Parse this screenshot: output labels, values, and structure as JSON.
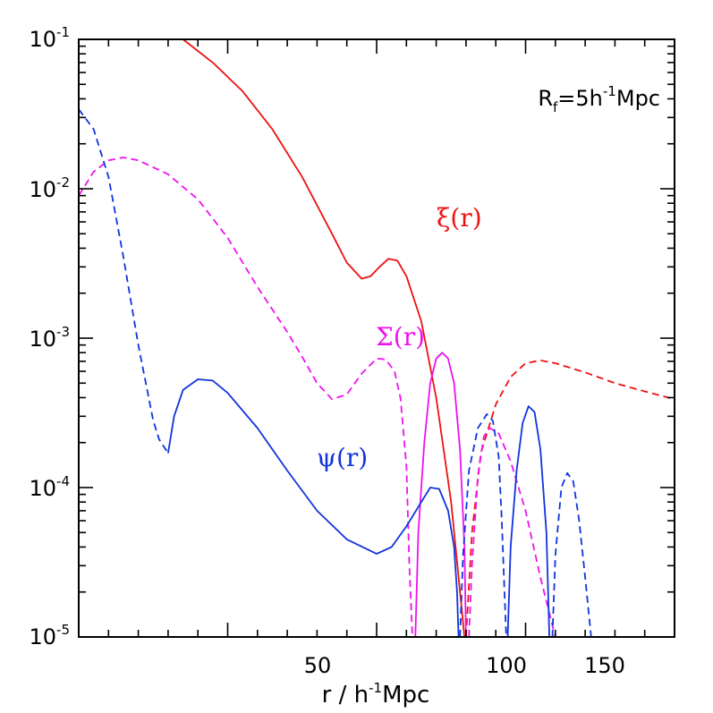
{
  "chart_data": {
    "type": "line",
    "title": "",
    "xlabel": "r / h",
    "xlabel_sup": "-1",
    "xlabel_unit": "Mpc",
    "ylabel": "",
    "xlim": [
      0,
      200
    ],
    "ylim": [
      1e-05,
      0.1
    ],
    "yscale": "log",
    "grid": false,
    "x_ticks": [
      {
        "value": 50,
        "label": "50"
      },
      {
        "value": 100,
        "label": "100"
      },
      {
        "value": 150,
        "label": "150"
      }
    ],
    "y_ticks": [
      {
        "value": 0.1,
        "base": "10",
        "exp": "-1"
      },
      {
        "value": 0.01,
        "base": "10",
        "exp": "-2"
      },
      {
        "value": 0.001,
        "base": "10",
        "exp": "-3"
      },
      {
        "value": 0.0001,
        "base": "10",
        "exp": "-4"
      },
      {
        "value": 1e-05,
        "base": "10",
        "exp": "-5"
      }
    ],
    "annotation": {
      "text_main": "R",
      "text_sub": "f",
      "text_mid": "=5h",
      "text_sup": "-1",
      "text_end": "Mpc"
    },
    "series": [
      {
        "name": "ξ(r)",
        "color": "#ee1111",
        "segments": [
          {
            "style": "solid",
            "points": [
              [
                35,
                0.1
              ],
              [
                45,
                0.07
              ],
              [
                55,
                0.045
              ],
              [
                65,
                0.025
              ],
              [
                75,
                0.012
              ],
              [
                85,
                0.005
              ],
              [
                90,
                0.0032
              ],
              [
                95,
                0.0025
              ],
              [
                98,
                0.0026
              ],
              [
                101,
                0.003
              ],
              [
                104,
                0.0034
              ],
              [
                107,
                0.0033
              ],
              [
                110,
                0.0026
              ],
              [
                115,
                0.0013
              ],
              [
                120,
                0.0004
              ],
              [
                125,
                8e-05
              ],
              [
                129.5,
                1e-05
              ]
            ]
          },
          {
            "style": "dashed",
            "points": [
              [
                130,
                1e-05
              ],
              [
                132,
                5e-05
              ],
              [
                135,
                0.00017
              ],
              [
                140,
                0.00036
              ],
              [
                145,
                0.00055
              ],
              [
                150,
                0.00068
              ],
              [
                155,
                0.00071
              ],
              [
                160,
                0.00068
              ],
              [
                170,
                0.00059
              ],
              [
                180,
                0.0005
              ],
              [
                190,
                0.00044
              ],
              [
                200,
                0.00039
              ]
            ]
          }
        ]
      },
      {
        "name": "Σ(r)",
        "color": "#ee11ee",
        "segments": [
          {
            "style": "dashed",
            "points": [
              [
                0,
                0.009
              ],
              [
                5,
                0.013
              ],
              [
                10,
                0.0155
              ],
              [
                15,
                0.0162
              ],
              [
                20,
                0.0155
              ],
              [
                30,
                0.0125
              ],
              [
                40,
                0.0085
              ],
              [
                50,
                0.0047
              ],
              [
                60,
                0.0022
              ],
              [
                70,
                0.0011
              ],
              [
                75,
                0.00075
              ],
              [
                80,
                0.0005
              ],
              [
                85,
                0.00039
              ],
              [
                90,
                0.00042
              ],
              [
                95,
                0.00058
              ],
              [
                100,
                0.00073
              ],
              [
                103,
                0.00072
              ],
              [
                106,
                0.0006
              ],
              [
                108,
                0.0004
              ],
              [
                110,
                0.00014
              ],
              [
                111,
                3e-05
              ],
              [
                112,
                1e-05
              ]
            ]
          },
          {
            "style": "solid",
            "points": [
              [
                113,
                1e-05
              ],
              [
                114,
                5e-05
              ],
              [
                116,
                0.0002
              ],
              [
                118,
                0.0005
              ],
              [
                120,
                0.00073
              ],
              [
                122,
                0.0008
              ],
              [
                124,
                0.00073
              ],
              [
                126,
                0.0005
              ],
              [
                128,
                0.00018
              ],
              [
                129.5,
                4e-05
              ],
              [
                130,
                1e-05
              ]
            ]
          },
          {
            "style": "dashed",
            "points": [
              [
                131,
                1e-05
              ],
              [
                132,
                3e-05
              ],
              [
                134,
                0.00012
              ],
              [
                136,
                0.00022
              ],
              [
                138,
                0.00025
              ],
              [
                141,
                0.00023
              ],
              [
                145,
                0.00015
              ],
              [
                150,
                7e-05
              ],
              [
                155,
                2.5e-05
              ],
              [
                160,
                1e-05
              ]
            ]
          }
        ]
      },
      {
        "name": "ψ(r)",
        "color": "#1133dd",
        "segments": [
          {
            "style": "dashed",
            "points": [
              [
                0,
                0.034
              ],
              [
                5,
                0.025
              ],
              [
                10,
                0.012
              ],
              [
                15,
                0.0035
              ],
              [
                20,
                0.0009
              ],
              [
                25,
                0.00028
              ],
              [
                27,
                0.00021
              ],
              [
                30,
                0.00017
              ]
            ]
          },
          {
            "style": "solid",
            "points": [
              [
                30,
                0.00017
              ],
              [
                32,
                0.0003
              ],
              [
                35,
                0.00045
              ],
              [
                40,
                0.00053
              ],
              [
                45,
                0.00052
              ],
              [
                50,
                0.00043
              ],
              [
                60,
                0.00025
              ],
              [
                70,
                0.00013
              ],
              [
                80,
                7e-05
              ],
              [
                90,
                4.5e-05
              ],
              [
                100,
                3.6e-05
              ],
              [
                105,
                4e-05
              ],
              [
                110,
                5.5e-05
              ],
              [
                115,
                8e-05
              ],
              [
                118,
                0.0001
              ],
              [
                121,
                9.8e-05
              ],
              [
                124,
                7e-05
              ],
              [
                126,
                4e-05
              ],
              [
                127,
                2e-05
              ],
              [
                127.5,
                1e-05
              ]
            ]
          },
          {
            "style": "dashed",
            "points": [
              [
                128,
                1e-05
              ],
              [
                129,
                3.5e-05
              ],
              [
                131,
                0.00013
              ],
              [
                134,
                0.00025
              ],
              [
                137,
                0.00031
              ],
              [
                139,
                0.00028
              ],
              [
                141,
                0.00016
              ],
              [
                142,
                6e-05
              ],
              [
                143,
                1.8e-05
              ],
              [
                143.5,
                1e-05
              ]
            ]
          },
          {
            "style": "solid",
            "points": [
              [
                144,
                1e-05
              ],
              [
                145,
                4e-05
              ],
              [
                147,
                0.00013
              ],
              [
                149,
                0.00027
              ],
              [
                151,
                0.00035
              ],
              [
                153,
                0.00032
              ],
              [
                155,
                0.00018
              ],
              [
                157,
                5e-05
              ],
              [
                158,
                1e-05
              ]
            ]
          },
          {
            "style": "dashed",
            "points": [
              [
                159,
                1e-05
              ],
              [
                160,
                3.5e-05
              ],
              [
                162,
                0.0001
              ],
              [
                164,
                0.000125
              ],
              [
                166,
                0.00011
              ],
              [
                168,
                6e-05
              ],
              [
                170,
                2.5e-05
              ],
              [
                172,
                1e-05
              ]
            ]
          }
        ]
      }
    ]
  }
}
